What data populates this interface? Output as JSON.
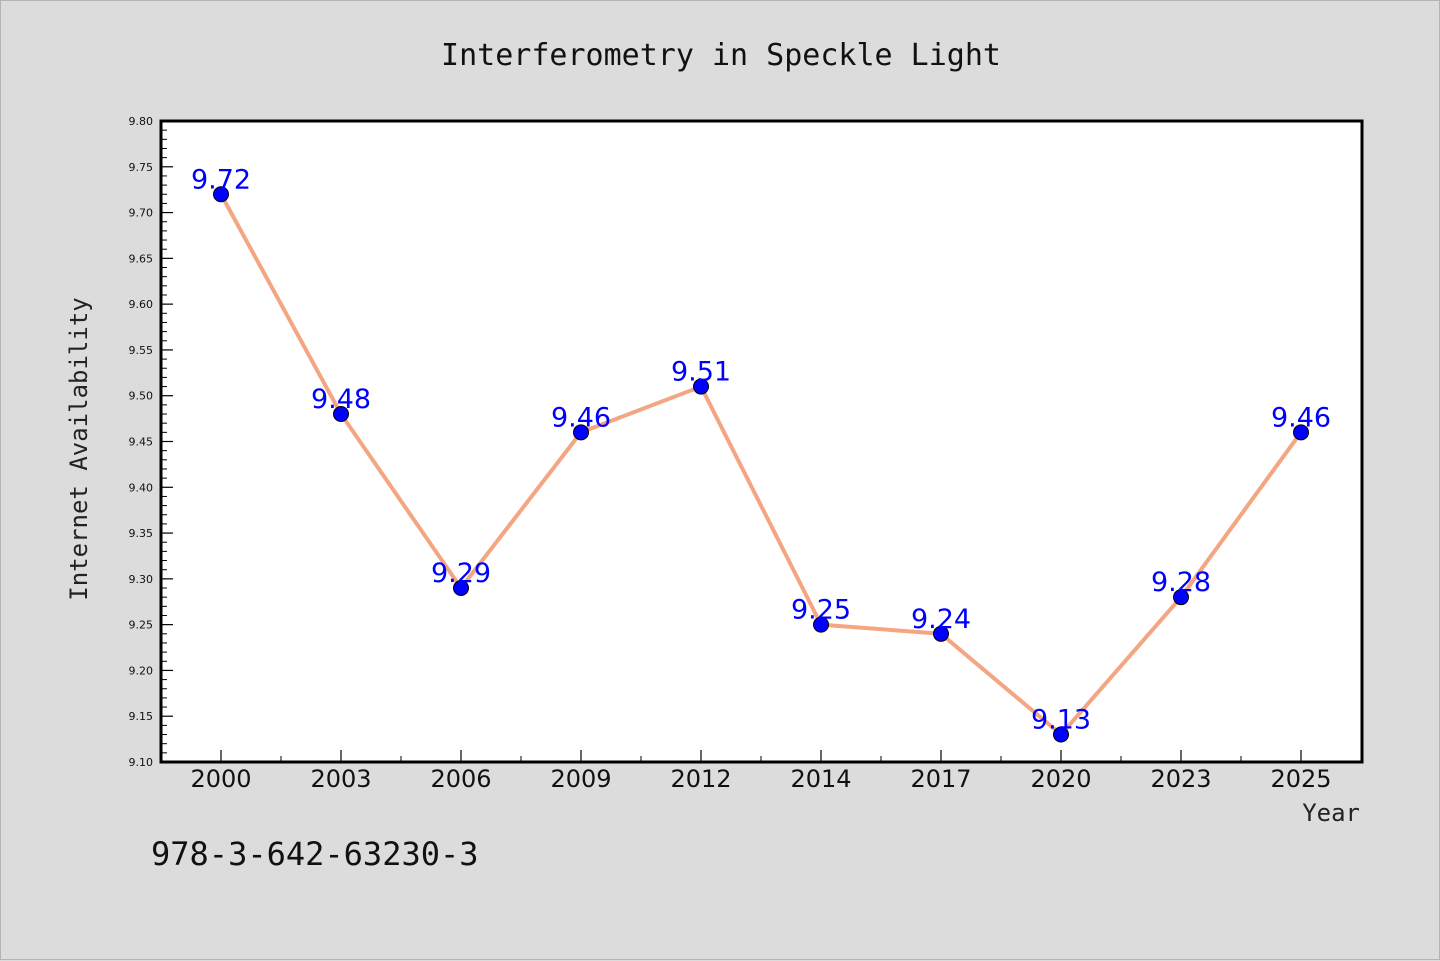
{
  "footer": {
    "text": "978-3-642-63230-3"
  },
  "colors": {
    "background": "#dcdcdc",
    "plot_background": "#ffffff",
    "line": "#f4a582",
    "marker": "#0000ff",
    "data_label": "#0000ff"
  },
  "chart_data": {
    "type": "line",
    "title": "Interferometry in Speckle Light",
    "xlabel": "Year",
    "ylabel": "Internet Availability",
    "categories": [
      "2000",
      "2003",
      "2006",
      "2009",
      "2012",
      "2014",
      "2017",
      "2020",
      "2023",
      "2025"
    ],
    "series": [
      {
        "values": [
          9.72,
          9.48,
          9.29,
          9.46,
          9.51,
          9.25,
          9.24,
          9.13,
          9.28,
          9.46
        ]
      }
    ],
    "data_labels": [
      "9.72",
      "9.48",
      "9.29",
      "9.46",
      "9.51",
      "9.25",
      "9.24",
      "9.13",
      "9.28",
      "9.46"
    ],
    "ylim": [
      9.1,
      9.8
    ],
    "yticks": [
      "9.10",
      "9.15",
      "9.20",
      "9.25",
      "9.30",
      "9.35",
      "9.40",
      "9.45",
      "9.50",
      "9.55",
      "9.60",
      "9.65",
      "9.70",
      "9.75",
      "9.80"
    ],
    "grid": false,
    "legend": "none"
  }
}
